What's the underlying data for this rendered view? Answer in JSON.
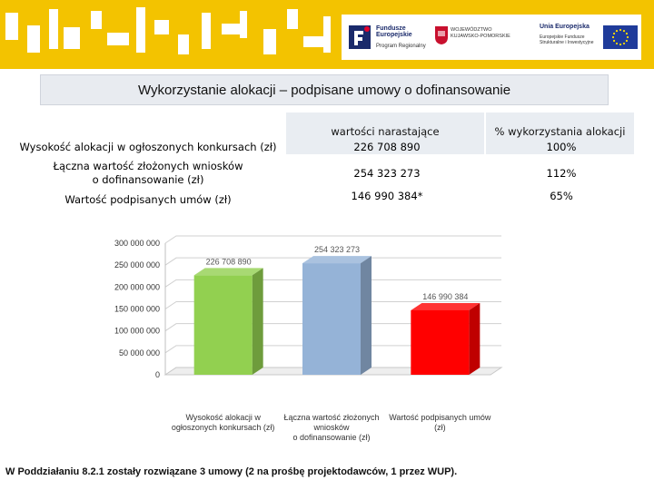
{
  "banner": {
    "logo_fe_title": "Fundusze Europejskie",
    "logo_fe_sub": "Program Regionalny",
    "logo_region": "WOJEWÓDZTWO KUJAWSKO-POMORSKIE",
    "logo_eu_title": "Unia Europejska",
    "logo_eu_sub": "Europejskie Fundusze Strukturalne i Inwestycyjne",
    "colors": {
      "banner": "#f3c300",
      "eu_flag": "#1f3b9a",
      "eu_stars": "#ffdd00"
    }
  },
  "title": "Wykorzystanie alokacji – podpisane umowy o dofinansowanie",
  "table": {
    "headers": [
      "",
      "wartości narastające",
      "% wykorzystania alokacji"
    ],
    "rows": [
      {
        "label": "Wysokość alokacji w ogłoszonych konkursach (zł)",
        "value": "226 708 890",
        "percent": "100%"
      },
      {
        "label": "Łączna wartość złożonych wniosków o dofinansowanie (zł)",
        "value": "254 323 273",
        "percent": "112%"
      },
      {
        "label": "Wartość podpisanych umów (zł)",
        "value": "146 990 384*",
        "percent": "65%"
      }
    ]
  },
  "chart_data": {
    "type": "bar",
    "categories": [
      [
        "Wysokość alokacji w",
        "ogłoszonych konkursach (zł)"
      ],
      [
        "Łączna wartość złożonych",
        "wniosków",
        "o dofinansowanie (zł)"
      ],
      [
        "Wartość podpisanych umów",
        "(zł)"
      ]
    ],
    "values": [
      226708890,
      254323273,
      146990384
    ],
    "data_labels": [
      "226 708 890",
      "254 323 273",
      "146 990 384"
    ],
    "colors": [
      "#92d050",
      "#95b3d7",
      "#ff0000"
    ],
    "yticks": [
      "0",
      "50 000 000",
      "100 000 000",
      "150 000 000",
      "200 000 000",
      "250 000 000",
      "300 000 000"
    ],
    "ylim": [
      0,
      300000000
    ],
    "grid": true,
    "legend": "none"
  },
  "footnote": "W Poddziałaniu 8.2.1 zostały rozwiązane 3 umowy (2 na prośbę projektodawców, 1 przez WUP)."
}
